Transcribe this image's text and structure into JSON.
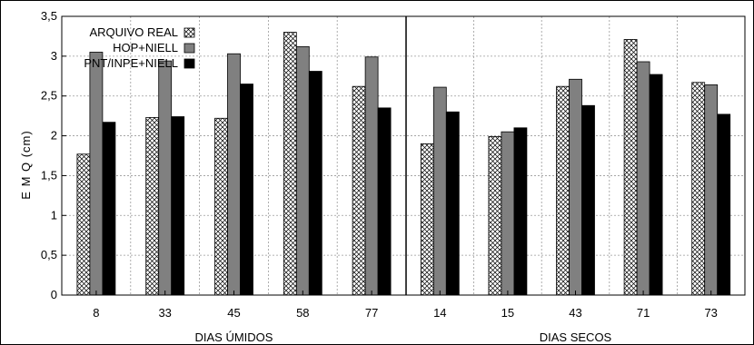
{
  "chart_data": {
    "type": "bar",
    "title": "",
    "ylabel": "E M Q (cm)",
    "ylim": [
      0,
      3.5
    ],
    "yticks": [
      "0",
      "0,5",
      "1",
      "1,5",
      "2",
      "2,5",
      "3",
      "3,5"
    ],
    "grid": true,
    "legend_position": "top-left",
    "series": [
      {
        "name": "ARQUIVO REAL",
        "fill": "hatch",
        "color": "#ffffff"
      },
      {
        "name": "HOP+NIELL",
        "fill": "solid",
        "color": "#808080"
      },
      {
        "name": "PNT/INPE+NIELL",
        "fill": "solid",
        "color": "#000000"
      }
    ],
    "groups": [
      {
        "label": "DIAS ÚMIDOS",
        "categories": [
          "8",
          "33",
          "45",
          "58",
          "77"
        ],
        "values": [
          [
            1.77,
            3.05,
            2.17
          ],
          [
            2.23,
            2.94,
            2.24
          ],
          [
            2.22,
            3.03,
            2.65
          ],
          [
            3.3,
            3.12,
            2.81
          ],
          [
            2.62,
            2.99,
            2.35
          ]
        ]
      },
      {
        "label": "DIAS SECOS",
        "categories": [
          "14",
          "15",
          "43",
          "71",
          "73"
        ],
        "values": [
          [
            1.9,
            2.61,
            2.3
          ],
          [
            1.99,
            2.05,
            2.1
          ],
          [
            2.62,
            2.71,
            2.38
          ],
          [
            3.21,
            2.93,
            2.77
          ],
          [
            2.67,
            2.64,
            2.27
          ]
        ]
      }
    ]
  }
}
